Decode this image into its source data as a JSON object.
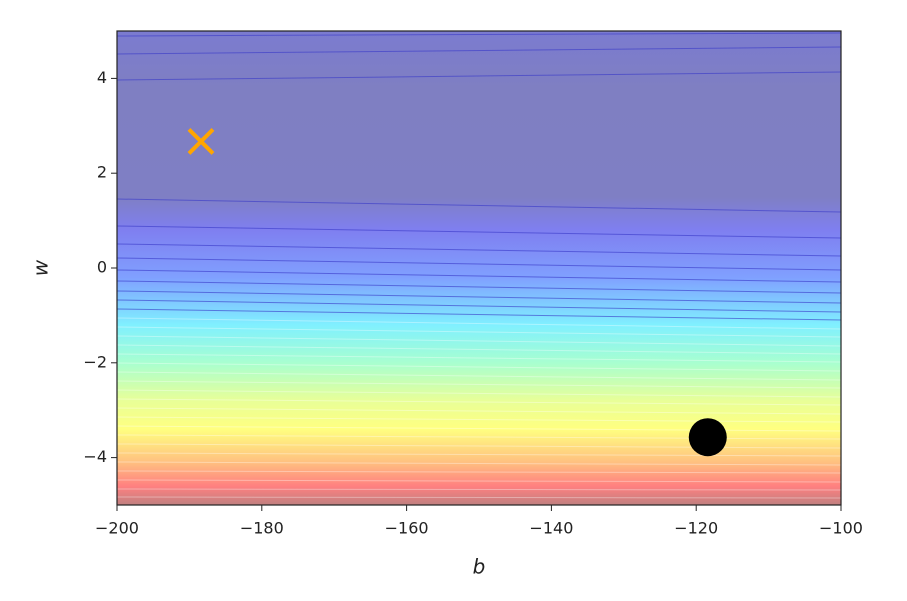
{
  "chart_data": {
    "type": "scatter",
    "x_label": "b",
    "y_label": "w",
    "xlim": [
      -200,
      -100
    ],
    "xticks": [
      {
        "value": -200,
        "label": "−200"
      },
      {
        "value": -180,
        "label": "−180"
      },
      {
        "value": -160,
        "label": "−160"
      },
      {
        "value": -140,
        "label": "−140"
      },
      {
        "value": -120,
        "label": "−120"
      },
      {
        "value": -100,
        "label": "−100"
      }
    ],
    "ylim": [
      -5,
      5
    ],
    "yticks": [
      {
        "value": -4,
        "label": "−4"
      },
      {
        "value": -2,
        "label": "−2"
      },
      0,
      2,
      4
    ],
    "series": [
      {
        "color": "#ffa500",
        "marker": "x",
        "x": [
          -188.4
        ],
        "values": [
          2.67
        ]
      },
      {
        "color": "#000000",
        "marker": "o",
        "x": [
          -118.4
        ],
        "values": [
          -3.57
        ]
      }
    ]
  }
}
